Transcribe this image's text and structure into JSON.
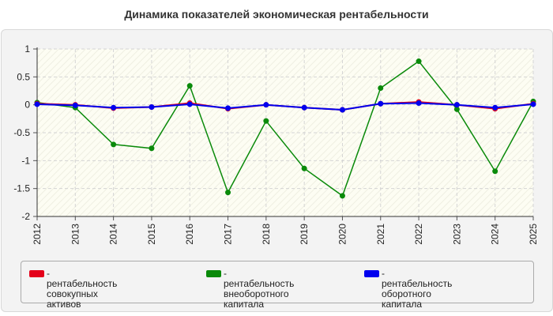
{
  "chart_data": {
    "type": "line",
    "title": "Динамика показателей экономическая рентабельности",
    "x": [
      "2012",
      "2013",
      "2014",
      "2015",
      "2016",
      "2017",
      "2018",
      "2019",
      "2020",
      "2021",
      "2022",
      "2023",
      "2024",
      "2025"
    ],
    "series": [
      {
        "name": "- рентабельность совокупных\nактивов",
        "color": "#e4001a",
        "values": [
          0.02,
          0.0,
          -0.06,
          -0.04,
          0.03,
          -0.07,
          0.0,
          -0.05,
          -0.09,
          0.02,
          0.05,
          0.0,
          -0.07,
          0.02
        ]
      },
      {
        "name": "- рентабельность\nвнеоборотного капитала",
        "color": "#0a8a0a",
        "values": [
          0.04,
          -0.05,
          -0.71,
          -0.78,
          0.34,
          -1.57,
          -0.29,
          -1.14,
          -1.63,
          0.3,
          0.78,
          -0.08,
          -1.19,
          0.06
        ]
      },
      {
        "name": "- рентабельность оборотного\nкапитала",
        "color": "#0000ee",
        "values": [
          0.01,
          -0.01,
          -0.05,
          -0.04,
          0.01,
          -0.06,
          0.0,
          -0.05,
          -0.09,
          0.02,
          0.03,
          0.0,
          -0.05,
          0.01
        ]
      }
    ],
    "ylim": [
      -2,
      1
    ],
    "yticks": [
      "1",
      "0.5",
      "0",
      "-0.5",
      "-1",
      "-1.5",
      "-2"
    ],
    "ytick_values": [
      1,
      0.5,
      0,
      -0.5,
      -1,
      -1.5,
      -2
    ],
    "grid": true,
    "legend_position": "bottom"
  }
}
